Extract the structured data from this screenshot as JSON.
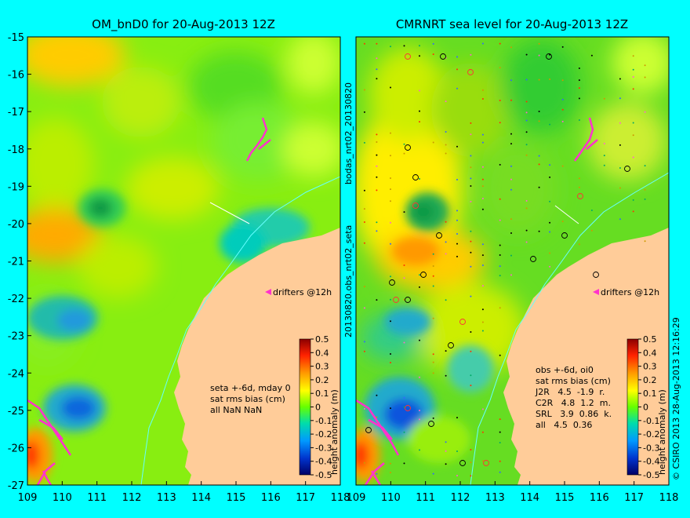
{
  "chart_data": [
    {
      "type": "heatmap",
      "title": "OM_bnD0 for 20-Aug-2013 12Z",
      "xlim": [
        109,
        118
      ],
      "ylim": [
        -27,
        -15
      ],
      "xticks": [
        "109",
        "110",
        "111",
        "112",
        "113",
        "114",
        "115",
        "116",
        "117",
        "118"
      ],
      "yticks": [
        "-15",
        "-16",
        "-17",
        "-18",
        "-19",
        "-20",
        "-21",
        "-22",
        "-23",
        "-24",
        "-25",
        "-26",
        "-27"
      ],
      "colorbar": {
        "label": "height anomaly (m)",
        "ticks": [
          "0.5",
          "0.4",
          "0.3",
          "0.2",
          "0.1",
          "0",
          "-0.1",
          "-0.2",
          "-0.3",
          "-0.4",
          "-0.5"
        ],
        "range": [
          -0.5,
          0.5
        ]
      },
      "legend_label": "drifters @12h",
      "stats_text": [
        "seta +-6d, mday 0",
        "sat rms bias (cm)",
        "all NaN NaN"
      ]
    },
    {
      "type": "heatmap",
      "title": "CMRNRT sea level  for 20-Aug-2013 12Z",
      "xlim": [
        109,
        118
      ],
      "ylim": [
        -27,
        -15
      ],
      "xticks": [
        "109",
        "110",
        "111",
        "112",
        "113",
        "114",
        "115",
        "116",
        "117",
        "118"
      ],
      "yticks": [],
      "colorbar": {
        "label": "height anomaly (m)",
        "ticks": [
          "0.5",
          "0.4",
          "0.3",
          "0.2",
          "0.1",
          "0",
          "-0.1",
          "-0.2",
          "-0.3",
          "-0.4",
          "-0.5"
        ],
        "range": [
          -0.5,
          0.5
        ]
      },
      "legend_label": "drifters @12h",
      "stats_text": [
        "obs +-6d, oi0",
        "sat rms bias (cm)",
        "J2R   4.5  -1.9  r.",
        "C2R   4.8  1.2  m.",
        "SRL   3.9  0.86  k.",
        "all   4.5  0.36"
      ]
    }
  ],
  "side_labels": {
    "mid_top": "bodas_nrt02_20130820",
    "mid_bottom": "20130820.obs_nrt02_seta",
    "right": "© CSIRO 2013   28-Aug-2013 12:16:29"
  },
  "colors": {
    "background": "#00ffff",
    "land": "#ffcc99",
    "drifter": "#ff33cc",
    "coast_line": "#66ffff"
  }
}
